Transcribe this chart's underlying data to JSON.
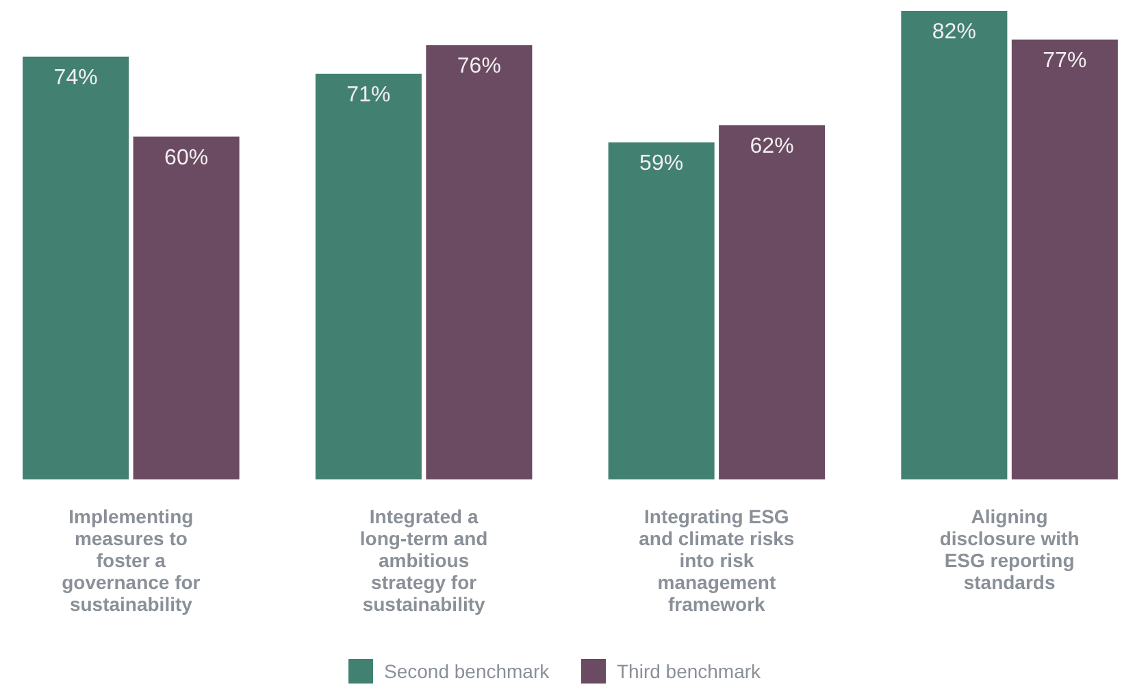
{
  "chart_data": {
    "type": "bar",
    "categories": [
      "Implementing measures to foster a governance for sustainability",
      "Integrated a long-term and ambitious strategy for sustainability",
      "Integrating ESG and climate risks into risk management framework",
      "Aligning disclosure with ESG reporting standards"
    ],
    "series": [
      {
        "name": "Second benchmark",
        "color": "#428172",
        "values": [
          74,
          71,
          59,
          82
        ],
        "value_labels": [
          "74%",
          "71%",
          "59%",
          "82%"
        ]
      },
      {
        "name": "Third benchmark",
        "color": "#6a4b62",
        "values": [
          60,
          76,
          62,
          77
        ],
        "value_labels": [
          "60%",
          "76%",
          "62%",
          "77%"
        ]
      }
    ],
    "legend": "bottom",
    "tick_labels": "x"
  }
}
